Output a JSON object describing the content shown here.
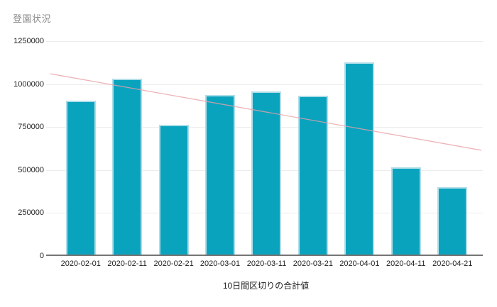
{
  "chart": {
    "title": "登園状況",
    "xlabel": "10日間区切りの合計値"
  },
  "chart_data": {
    "type": "bar",
    "title": "登園状況",
    "xlabel": "10日間区切りの合計値",
    "ylabel": "",
    "categories": [
      "2020-02-01",
      "2020-02-11",
      "2020-02-21",
      "2020-03-01",
      "2020-03-11",
      "2020-03-21",
      "2020-04-01",
      "2020-04-11",
      "2020-04-21"
    ],
    "values": [
      900000,
      1030000,
      760000,
      935000,
      955000,
      930000,
      1125000,
      510000,
      395000
    ],
    "ylim": [
      0,
      1250000
    ],
    "yticks": [
      0,
      250000,
      500000,
      750000,
      1000000,
      1250000
    ],
    "grid": true,
    "legend_position": "none",
    "trendline": {
      "start_value": 1060000,
      "end_value": 615000
    },
    "colors": {
      "bar_fill": "#0aa3be",
      "bar_border": "#aedde8",
      "trend_line": "#e8a0a8",
      "gridline": "#ececec",
      "axis_line": "#757575",
      "tick_text": "#212121",
      "title_text": "#8b8b8b"
    }
  }
}
